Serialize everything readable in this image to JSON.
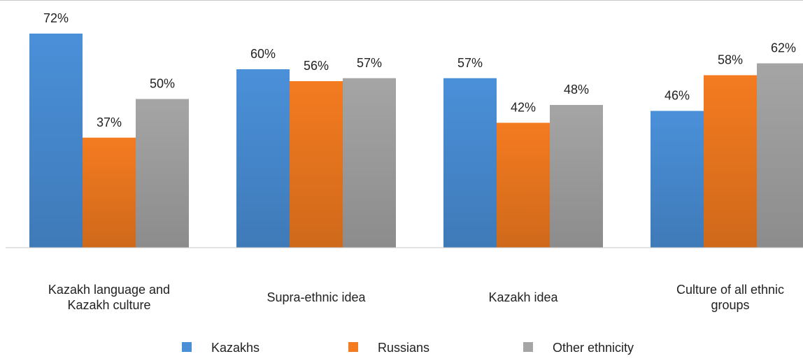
{
  "chart_data": {
    "type": "bar",
    "title": "",
    "xlabel": "",
    "ylabel": "",
    "ylim": [
      0,
      72
    ],
    "grid": false,
    "legend_position": "bottom",
    "value_suffix": "%",
    "categories": [
      [
        "Kazakh language and",
        "Kazakh culture"
      ],
      [
        "Supra-ethnic idea"
      ],
      [
        "Kazakh idea"
      ],
      [
        "Culture of all ethnic",
        "groups"
      ]
    ],
    "series": [
      {
        "name": "Kazakhs",
        "color": "#4a90d9",
        "values": [
          72,
          60,
          57,
          46
        ]
      },
      {
        "name": "Russians",
        "color": "#f47b20",
        "values": [
          37,
          56,
          42,
          58
        ]
      },
      {
        "name": "Other ethnicity",
        "color": "#a5a5a5",
        "values": [
          50,
          57,
          48,
          62
        ]
      }
    ]
  }
}
